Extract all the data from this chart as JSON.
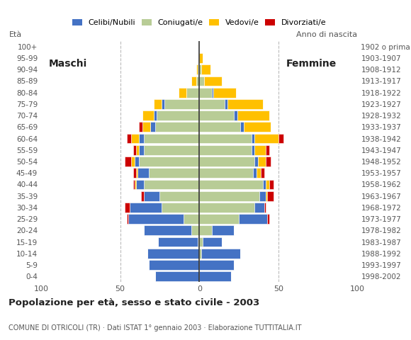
{
  "age_groups": [
    "0-4",
    "5-9",
    "10-14",
    "15-19",
    "20-24",
    "25-29",
    "30-34",
    "35-39",
    "40-44",
    "45-49",
    "50-54",
    "55-59",
    "60-64",
    "65-69",
    "70-74",
    "75-79",
    "80-84",
    "85-89",
    "90-94",
    "95-99",
    "100+"
  ],
  "birth_years": [
    "1998-2002",
    "1993-1997",
    "1988-1992",
    "1983-1987",
    "1978-1982",
    "1973-1977",
    "1968-1972",
    "1963-1967",
    "1958-1962",
    "1953-1957",
    "1948-1952",
    "1943-1947",
    "1938-1942",
    "1933-1937",
    "1928-1932",
    "1923-1927",
    "1918-1922",
    "1913-1917",
    "1908-1912",
    "1903-1907",
    "1902 o prima"
  ],
  "males": {
    "coniugato": [
      0,
      0,
      0,
      1,
      5,
      10,
      24,
      25,
      35,
      32,
      38,
      35,
      35,
      28,
      27,
      22,
      8,
      2,
      1,
      0,
      0
    ],
    "celibe": [
      28,
      32,
      33,
      25,
      30,
      35,
      20,
      10,
      5,
      7,
      3,
      3,
      3,
      3,
      2,
      2,
      0,
      0,
      0,
      0,
      0
    ],
    "vedovo": [
      0,
      0,
      0,
      0,
      0,
      0,
      0,
      0,
      1,
      1,
      2,
      2,
      5,
      5,
      7,
      5,
      5,
      3,
      1,
      0,
      0
    ],
    "divorziato": [
      0,
      0,
      0,
      0,
      0,
      1,
      3,
      2,
      1,
      2,
      4,
      2,
      3,
      2,
      0,
      0,
      0,
      0,
      0,
      0,
      0
    ]
  },
  "females": {
    "coniugato": [
      0,
      0,
      1,
      2,
      8,
      25,
      35,
      38,
      40,
      34,
      35,
      33,
      33,
      26,
      22,
      16,
      8,
      3,
      1,
      0,
      0
    ],
    "celibe": [
      20,
      22,
      25,
      12,
      14,
      18,
      6,
      4,
      2,
      2,
      2,
      2,
      2,
      2,
      2,
      2,
      1,
      0,
      0,
      0,
      0
    ],
    "vedovo": [
      0,
      0,
      0,
      0,
      0,
      0,
      0,
      1,
      2,
      3,
      5,
      7,
      15,
      17,
      20,
      22,
      14,
      11,
      6,
      2,
      0
    ],
    "divorziato": [
      0,
      0,
      0,
      0,
      0,
      1,
      1,
      4,
      3,
      2,
      3,
      2,
      3,
      0,
      0,
      0,
      0,
      0,
      0,
      0,
      0
    ]
  },
  "colors": {
    "coniugato": "#b8cc96",
    "celibe": "#4472C4",
    "vedovo": "#FFC000",
    "divorziato": "#CC0000"
  },
  "legend_labels": [
    "Celibi/Nubili",
    "Coniugati/e",
    "Vedovi/e",
    "Divorziati/e"
  ],
  "legend_colors": [
    "#4472C4",
    "#b8cc96",
    "#FFC000",
    "#CC0000"
  ],
  "title": "Popolazione per età, sesso e stato civile - 2003",
  "subtitle": "COMUNE DI OTRICOLI (TR) · Dati ISTAT 1° gennaio 2003 · Elaborazione TUTTITALIA.IT",
  "label_eta": "Età",
  "label_maschi": "Maschi",
  "label_femmine": "Femmine",
  "label_anno": "Anno di nascita",
  "xlim": 100,
  "bgcolor": "#ffffff"
}
